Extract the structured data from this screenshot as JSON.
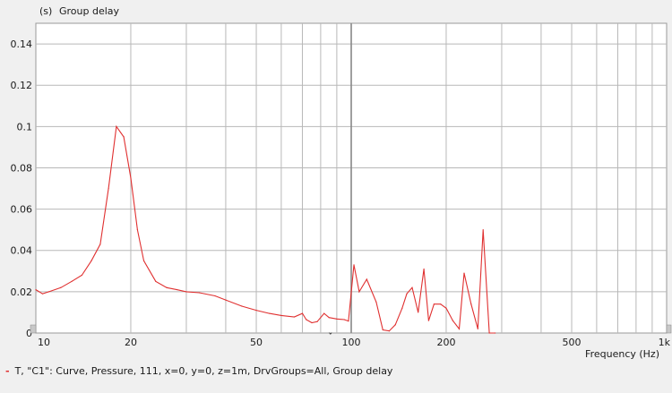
{
  "chart_data": {
    "type": "line",
    "title": "Group delay",
    "ylabel": "(s)",
    "xlabel": "Frequency (Hz)",
    "x_scale": "log",
    "xlim": [
      10,
      1000
    ],
    "ylim": [
      0,
      0.15
    ],
    "grid": true,
    "y_ticks": [
      "0",
      "0.02",
      "0.04",
      "0.06",
      "0.08",
      "0.1",
      "0.12",
      "0.14"
    ],
    "y_tick_values": [
      0,
      0.02,
      0.04,
      0.06,
      0.08,
      0.1,
      0.12,
      0.14
    ],
    "x_tick_labels": [
      {
        "value": 10,
        "label": "10"
      },
      {
        "value": 20,
        "label": "20"
      },
      {
        "value": 50,
        "label": "50"
      },
      {
        "value": 100,
        "label": "100"
      },
      {
        "value": 200,
        "label": "200"
      },
      {
        "value": 500,
        "label": "500"
      },
      {
        "value": 1000,
        "label": "1k"
      }
    ],
    "series": [
      {
        "color": "#e03030",
        "points": [
          [
            10,
            0.021
          ],
          [
            10.5,
            0.019
          ],
          [
            11,
            0.02
          ],
          [
            12,
            0.022
          ],
          [
            13,
            0.025
          ],
          [
            14,
            0.028
          ],
          [
            15,
            0.035
          ],
          [
            16,
            0.043
          ],
          [
            17,
            0.07
          ],
          [
            18,
            0.1
          ],
          [
            19,
            0.095
          ],
          [
            20,
            0.075
          ],
          [
            21,
            0.05
          ],
          [
            22,
            0.035
          ],
          [
            24,
            0.025
          ],
          [
            26,
            0.022
          ],
          [
            28,
            0.021
          ],
          [
            30,
            0.02
          ],
          [
            33,
            0.0195
          ],
          [
            37,
            0.018
          ],
          [
            40,
            0.016
          ],
          [
            45,
            0.013
          ],
          [
            50,
            0.011
          ],
          [
            55,
            0.0095
          ],
          [
            60,
            0.0085
          ],
          [
            66,
            0.0078
          ],
          [
            70,
            0.0095
          ],
          [
            72,
            0.0065
          ],
          [
            75,
            0.005
          ],
          [
            78,
            0.0055
          ],
          [
            82,
            0.0095
          ],
          [
            85,
            0.0075
          ],
          [
            90,
            0.0068
          ],
          [
            95,
            0.0065
          ],
          [
            98,
            0.0058
          ],
          [
            102,
            0.033
          ],
          [
            106,
            0.02
          ],
          [
            112,
            0.026
          ],
          [
            120,
            0.015
          ],
          [
            126,
            0.0015
          ],
          [
            132,
            0.001
          ],
          [
            138,
            0.004
          ],
          [
            145,
            0.012
          ],
          [
            150,
            0.019
          ],
          [
            156,
            0.022
          ],
          [
            163,
            0.01
          ],
          [
            170,
            0.031
          ],
          [
            176,
            0.006
          ],
          [
            183,
            0.014
          ],
          [
            192,
            0.014
          ],
          [
            200,
            0.012
          ],
          [
            210,
            0.006
          ],
          [
            220,
            0.002
          ],
          [
            228,
            0.029
          ],
          [
            240,
            0.014
          ],
          [
            252,
            0.002
          ],
          [
            262,
            0.05
          ],
          [
            274,
            0.0
          ],
          [
            286,
            0.0
          ]
        ]
      }
    ]
  },
  "status": {
    "marker": "T,",
    "text": "\"C1\": Curve, Pressure, 111, x=0, y=0, z=1m, DrvGroups=All, Group delay"
  }
}
